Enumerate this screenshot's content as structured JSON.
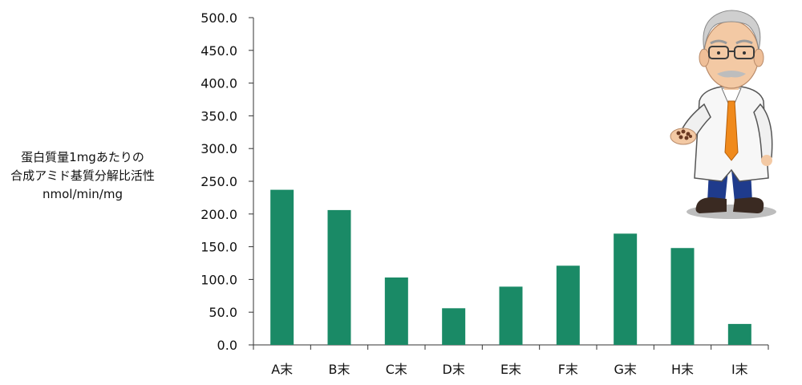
{
  "chart_data": {
    "type": "bar",
    "title": "",
    "xlabel": "",
    "ylabel_lines": [
      "蛋白質量1mgあたりの",
      "合成アミド基質分解比活性",
      "nmol/min/mg"
    ],
    "categories": [
      "A末",
      "B末",
      "C末",
      "D末",
      "E末",
      "F末",
      "G末",
      "H末",
      "I末"
    ],
    "values": [
      237,
      206,
      103,
      56,
      89,
      121,
      170,
      148,
      32
    ],
    "ylim": [
      0,
      500
    ],
    "yticks": [
      "0.0",
      "50.0",
      "100.0",
      "150.0",
      "200.0",
      "250.0",
      "300.0",
      "350.0",
      "400.0",
      "450.0",
      "500.0"
    ],
    "grid": false,
    "legend": "none",
    "bar_color": "#1a8a66"
  },
  "illustration": {
    "icon": "professor-holding-herbs-icon"
  }
}
